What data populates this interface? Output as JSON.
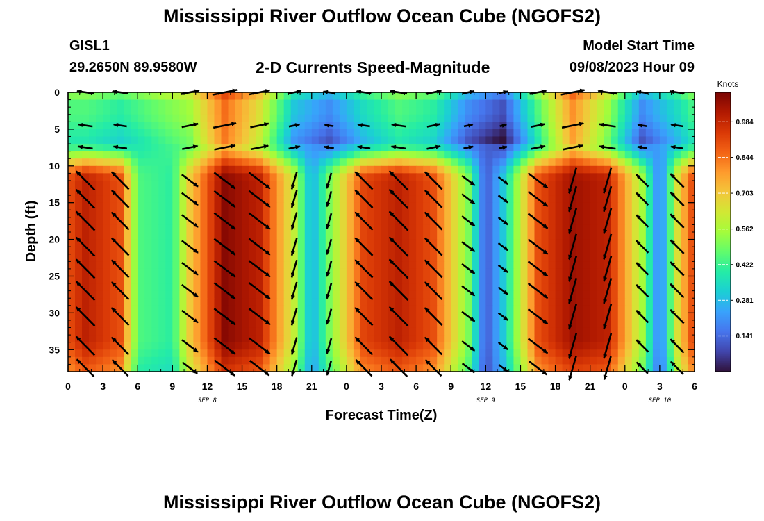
{
  "header": {
    "title": "Mississippi River Outflow Ocean Cube (NGOFS2)",
    "station_id": "GISL1",
    "station_coords": "29.2650N  89.9580W",
    "plot_title": "2-D Currents Speed-Magnitude",
    "model_start_label": "Model Start Time",
    "model_start_value": "09/08/2023 Hour 09"
  },
  "footer": {
    "repeat_title": "Mississippi River Outflow Ocean Cube (NGOFS2)"
  },
  "chart_data": {
    "type": "heatmap",
    "xlabel": "Forecast Time(Z)",
    "ylabel": "Depth (ft)",
    "x_tick_labels": [
      "0",
      "3",
      "6",
      "9",
      "12",
      "15",
      "18",
      "21",
      "0",
      "3",
      "6",
      "9",
      "12",
      "15",
      "18",
      "21",
      "0",
      "3",
      "6"
    ],
    "day_labels": [
      {
        "label": "SEP 8",
        "hour": 12
      },
      {
        "label": "SEP 9",
        "hour": 36
      },
      {
        "label": "SEP 10",
        "hour": 51
      }
    ],
    "x_range_hours": [
      0,
      54
    ],
    "y_ticks": [
      0,
      5,
      10,
      15,
      20,
      25,
      30,
      35
    ],
    "ylim": [
      0,
      38
    ],
    "y_inverted": true,
    "colorbar": {
      "unit": "Knots",
      "min": 0.0,
      "max": 1.1,
      "tick_labels": [
        "0.984",
        "0.844",
        "0.703",
        "0.562",
        "0.422",
        "0.281",
        "0.141"
      ],
      "tick_values": [
        0.984,
        0.844,
        0.703,
        0.562,
        0.422,
        0.281,
        0.141
      ],
      "colors": [
        "#30123b",
        "#4145ab",
        "#4675ed",
        "#39a2fc",
        "#1bcfd4",
        "#24eca6",
        "#61fc6c",
        "#a4fc3b",
        "#d1e834",
        "#f3c63a",
        "#fe9b2d",
        "#f36315",
        "#d93806",
        "#b11901",
        "#7a0403"
      ]
    },
    "surface_layer": {
      "depth_range_ft": [
        0,
        9
      ],
      "times_h": [
        1.5,
        4.5,
        10.5,
        13.5,
        16.5,
        19.5,
        22.5,
        25.5,
        28.5,
        31.5,
        34.5,
        37.5,
        40.5,
        43.5,
        46.5,
        49.5,
        52.5,
        54.0
      ],
      "speeds_kn": [
        0.45,
        0.4,
        0.55,
        0.85,
        0.65,
        0.3,
        0.2,
        0.35,
        0.45,
        0.4,
        0.2,
        0.1,
        0.45,
        0.8,
        0.55,
        0.2,
        0.35,
        0.45
      ]
    },
    "deep_layer": {
      "depth_range_ft": [
        10,
        38
      ],
      "times_h": [
        0,
        1.5,
        4.5,
        6,
        9,
        10.5,
        13.5,
        16.5,
        19.5,
        21,
        22.5,
        25.5,
        28.5,
        31.5,
        34.5,
        36,
        37.5,
        40.5,
        43.5,
        46.5,
        49.5,
        51,
        52.5,
        54
      ],
      "speeds_kn": [
        0.9,
        1.0,
        0.9,
        0.45,
        0.4,
        0.7,
        1.08,
        1.0,
        0.6,
        0.25,
        0.5,
        0.92,
        1.0,
        0.9,
        0.5,
        0.1,
        0.3,
        0.9,
        1.05,
        1.0,
        0.55,
        0.15,
        0.65,
        0.95
      ]
    },
    "vector_times_h": [
      1.5,
      4.5,
      10.5,
      13.5,
      16.5,
      19.5,
      22.5,
      25.5,
      28.5,
      31.5,
      34.5,
      37.5,
      40.5,
      43.5,
      46.5,
      49.5,
      52.5
    ],
    "vector_depths_ft": [
      0,
      4.5,
      7.5,
      12,
      14.5,
      17.5,
      21,
      24,
      27,
      30.5,
      34.5,
      37.5
    ]
  }
}
